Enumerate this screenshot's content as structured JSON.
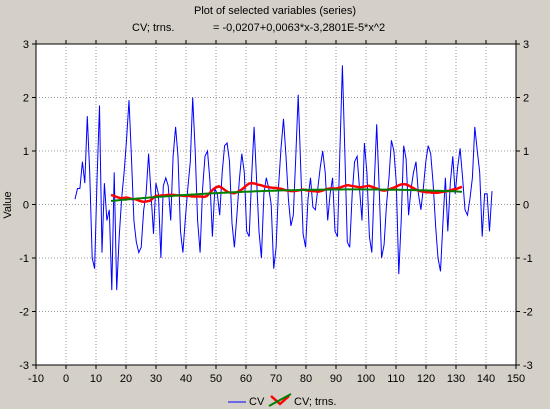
{
  "chart_data": {
    "type": "line",
    "title": "Plot of selected variables (series)",
    "subtitle_label": "CV; trns.",
    "subtitle_formula": "= -0,0207+0,0063*x-3,2801E-5*x^2",
    "ylabel": "Value",
    "xlim": [
      -10,
      150
    ],
    "ylim": [
      -3,
      3
    ],
    "x_ticks": [
      -10,
      0,
      10,
      20,
      30,
      40,
      50,
      60,
      70,
      80,
      90,
      100,
      110,
      120,
      130,
      140,
      150
    ],
    "y_ticks": [
      -3,
      -2,
      -1,
      0,
      1,
      2,
      3
    ],
    "grid": true,
    "legend_position": "bottom",
    "trend": {
      "a": -0.0207,
      "b": 0.0063,
      "c": -3.2801e-05,
      "x_from": 15,
      "x_to": 132,
      "color": "#008000"
    },
    "series": [
      {
        "name": "CV",
        "color": "#0000ff",
        "x0": 3,
        "values": [
          0.1,
          0.3,
          0.3,
          0.8,
          0.4,
          1.65,
          0.6,
          -1.0,
          -1.2,
          0.5,
          1.85,
          -0.9,
          0.4,
          -0.3,
          -0.1,
          -1.6,
          0.6,
          -1.6,
          -0.6,
          0.1,
          0.6,
          1.2,
          1.95,
          0.9,
          -0.3,
          -0.7,
          -0.9,
          -0.8,
          -0.1,
          0.2,
          0.95,
          0.2,
          -0.55,
          0.4,
          0.2,
          -1.0,
          0.35,
          0.5,
          0.35,
          -0.3,
          0.9,
          1.45,
          0.9,
          -0.5,
          -0.9,
          -0.25,
          0.3,
          0.8,
          2.0,
          1.0,
          -0.3,
          -0.9,
          0.3,
          0.9,
          1.0,
          0.45,
          -0.6,
          0.3,
          0.2,
          -0.2,
          0.6,
          1.1,
          1.15,
          0.8,
          -0.35,
          -0.8,
          -0.2,
          0.45,
          0.95,
          0.6,
          -0.5,
          -0.6,
          0.5,
          1.45,
          0.5,
          -0.5,
          -1.0,
          0.2,
          0.5,
          0.3,
          0.0,
          -1.2,
          -0.8,
          0.35,
          1.05,
          1.6,
          0.9,
          0.1,
          -0.4,
          -0.2,
          0.9,
          2.05,
          0.7,
          -0.55,
          -0.8,
          0.1,
          0.5,
          -0.05,
          -0.1,
          0.3,
          0.7,
          1.0,
          0.6,
          -0.3,
          0.2,
          0.5,
          -0.5,
          -0.6,
          1.0,
          2.6,
          1.0,
          -0.7,
          -0.8,
          0.2,
          0.8,
          0.9,
          0.3,
          -0.3,
          1.15,
          0.6,
          -0.6,
          -0.9,
          0.4,
          1.5,
          0.3,
          -1.0,
          -0.75,
          0.0,
          0.5,
          1.2,
          1.0,
          0.4,
          -1.3,
          -0.3,
          1.1,
          0.85,
          -0.2,
          0.3,
          0.6,
          0.8,
          0.2,
          -0.1,
          0.3,
          0.8,
          1.1,
          0.95,
          0.4,
          -0.4,
          -1.0,
          -1.25,
          -0.35,
          0.5,
          -0.5,
          0.4,
          0.9,
          0.2,
          0.7,
          1.05,
          0.5,
          -0.1,
          -0.2,
          0.1,
          0.5,
          1.45,
          1.0,
          0.6,
          -0.6,
          0.2,
          0.2,
          -0.5,
          0.25
        ]
      },
      {
        "name": "CV; trns.",
        "color": "#ff0000",
        "x0": 15,
        "values": [
          0.18,
          0.16,
          0.14,
          0.12,
          0.12,
          0.13,
          0.12,
          0.1,
          0.1,
          0.08,
          0.06,
          0.05,
          0.06,
          0.07,
          0.12,
          0.16,
          0.16,
          0.17,
          0.17,
          0.18,
          0.18,
          0.18,
          0.17,
          0.17,
          0.16,
          0.16,
          0.16,
          0.15,
          0.15,
          0.15,
          0.15,
          0.14,
          0.16,
          0.22,
          0.28,
          0.32,
          0.34,
          0.31,
          0.27,
          0.23,
          0.22,
          0.21,
          0.23,
          0.26,
          0.3,
          0.35,
          0.39,
          0.4,
          0.39,
          0.37,
          0.36,
          0.34,
          0.33,
          0.32,
          0.31,
          0.31,
          0.3,
          0.29,
          0.27,
          0.26,
          0.25,
          0.25,
          0.26,
          0.27,
          0.28,
          0.27,
          0.26,
          0.25,
          0.25,
          0.24,
          0.25,
          0.27,
          0.29,
          0.3,
          0.3,
          0.3,
          0.31,
          0.33,
          0.35,
          0.36,
          0.35,
          0.34,
          0.33,
          0.32,
          0.33,
          0.34,
          0.35,
          0.33,
          0.31,
          0.29,
          0.27,
          0.26,
          0.27,
          0.29,
          0.31,
          0.33,
          0.36,
          0.38,
          0.38,
          0.36,
          0.33,
          0.3,
          0.27,
          0.25,
          0.24,
          0.23,
          0.23,
          0.22,
          0.22,
          0.22,
          0.23,
          0.24,
          0.25,
          0.26,
          0.28,
          0.29,
          0.31,
          0.33
        ]
      }
    ]
  }
}
